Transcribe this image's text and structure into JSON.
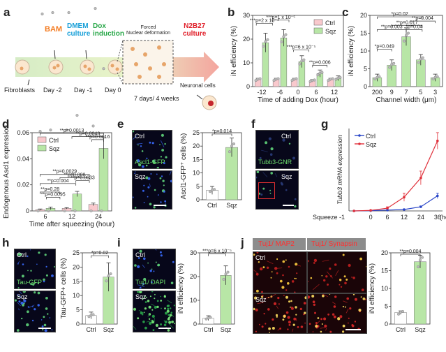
{
  "panel_letters": [
    "a",
    "b",
    "c",
    "d",
    "e",
    "f",
    "g",
    "h",
    "i",
    "j"
  ],
  "timeline": {
    "stages": [
      {
        "label": "BAM",
        "color": "#f47b20"
      },
      {
        "label": "DMEM\nculture",
        "color": "#1aa0d8"
      },
      {
        "label": "Dox\ninduction",
        "color": "#2aa84a"
      },
      {
        "label": "N2B27\nculture",
        "color": "#e0202a"
      }
    ],
    "start_label": "Fibroblasts",
    "days": [
      "Day -2",
      "Day -1",
      "Day 0",
      "7 days/ 4 weeks"
    ],
    "forced_label": "Forced\nNuclear deformation",
    "end_label": "Neuronal cells"
  },
  "colors": {
    "ctrl": "#f9c9cd",
    "sqz": "#b8e6a6",
    "ctrl_line": "#2a46c8",
    "sqz_line": "#e0303a"
  },
  "microscopy": {
    "e": {
      "top": "Ctrl",
      "bottom": "Sqz",
      "stain": "Ascl1-GFP"
    },
    "f": {
      "top": "Ctrl",
      "bottom": "Sqz",
      "stain": "Tubb3-GNR"
    },
    "h": {
      "top": "Ctrl",
      "bottom": "Sqz",
      "stain": "Tau-GFP"
    },
    "i": {
      "top": "Ctrl",
      "bottom": "Sqz",
      "stain": "Tuj1/ DAPI"
    },
    "j": {
      "tab1": "Tuj1/ MAP2",
      "tab2": "Tuj1/ Synapsin",
      "top": "Ctrl",
      "bottom": "Sqz"
    }
  },
  "chart_data": [
    {
      "panel": "b",
      "type": "bar",
      "xlabel": "Time of adding Dox (hour)",
      "ylabel": "iN efficiency (%)",
      "categories": [
        "-12",
        "-6",
        "0",
        "6",
        "12"
      ],
      "series": [
        {
          "name": "Ctrl",
          "values": [
            3,
            3,
            3,
            2.5,
            3
          ],
          "err": [
            0.5,
            0.5,
            0.5,
            0.5,
            0.5
          ]
        },
        {
          "name": "Sqz",
          "values": [
            18.5,
            20.5,
            10.5,
            5.5,
            3.5
          ],
          "err": [
            4,
            3.5,
            2.5,
            1.5,
            1
          ]
        }
      ],
      "ylim": [
        0,
        30
      ],
      "yticks": [
        0,
        10,
        20,
        30
      ],
      "legend": "top-right",
      "annotations": [
        "***p=2 x 10⁻⁴",
        "***p=1 x 10⁻⁵",
        "***p=6 x 10⁻⁵",
        "**p=0.006"
      ]
    },
    {
      "panel": "c",
      "type": "bar",
      "xlabel": "Channel width (μm)",
      "ylabel": "iN efficiency (%)",
      "categories": [
        "200",
        "9",
        "7",
        "5",
        "3"
      ],
      "values": [
        2.5,
        6,
        14,
        7.5,
        2.5
      ],
      "err": [
        1,
        1.5,
        2.5,
        1.5,
        1
      ],
      "ylim": [
        0,
        20
      ],
      "yticks": [
        0,
        5,
        10,
        15,
        20
      ],
      "annotations": [
        "*p=0.02",
        "**p=0.004",
        "**p=0.017",
        "**p=0.003",
        "*p=0.04",
        "*p=0.049"
      ]
    },
    {
      "panel": "d",
      "type": "bar",
      "xlabel": "Time after squeezing (hour)",
      "ylabel": "Endogenous Ascl1 expression",
      "categories": [
        "6",
        "12",
        "24"
      ],
      "series": [
        {
          "name": "Ctrl",
          "values": [
            0.001,
            0.002,
            0.005
          ],
          "err": [
            0.0005,
            0.0005,
            0.001
          ]
        },
        {
          "name": "Sqz",
          "values": [
            0.002,
            0.013,
            0.048
          ],
          "err": [
            0.001,
            0.002,
            0.008
          ]
        }
      ],
      "ylim": [
        0,
        0.06
      ],
      "yticks": [
        0,
        0.02,
        0.04,
        0.06
      ],
      "legend": "top-left",
      "annotations": [
        "**p=0.0013",
        "**p=0.0043",
        "**p=0.0016",
        "**p=0.0029",
        "**p=0.008",
        "**p=0.0033",
        "**p=0.004",
        "**p=0.28",
        "**p=0.0095"
      ]
    },
    {
      "panel": "e",
      "type": "bar",
      "ylabel": "Ascl1-GFP⁺ cells (%)",
      "categories": [
        "Ctrl",
        "Sqz"
      ],
      "values": [
        3.5,
        19.5
      ],
      "err": [
        1.5,
        3.5
      ],
      "ylim": [
        0,
        25
      ],
      "yticks": [
        0,
        5,
        10,
        15,
        20,
        25
      ],
      "annotations": [
        "*p=0.014"
      ]
    },
    {
      "panel": "g",
      "type": "line",
      "xlabel": "(hour)",
      "ylabel": "Tubb3 mRNA expression",
      "x": [
        "Squeeze -1",
        "0",
        "6",
        "12",
        "24",
        "36"
      ],
      "series": [
        {
          "name": "Ctrl",
          "values": [
            0,
            1,
            3,
            5,
            15,
            55
          ],
          "err": [
            0,
            0,
            1,
            2,
            3,
            10
          ]
        },
        {
          "name": "Sqz",
          "values": [
            0,
            2,
            10,
            50,
            120,
            255
          ],
          "err": [
            0,
            1,
            5,
            15,
            25,
            30
          ]
        }
      ],
      "ylim": [
        0,
        300
      ],
      "legend": "top-left"
    },
    {
      "panel": "h",
      "type": "bar",
      "ylabel": "Tau-GFP+ cells (%)",
      "categories": [
        "Ctrl",
        "Sqz"
      ],
      "values": [
        3,
        16.5
      ],
      "err": [
        1.2,
        5
      ],
      "ylim": [
        0,
        25
      ],
      "yticks": [
        0,
        5,
        10,
        15,
        20,
        25
      ],
      "annotations": [
        "*p=0.02"
      ]
    },
    {
      "panel": "i",
      "type": "bar",
      "ylabel": "iN efficiency (%)",
      "categories": [
        "Ctrl",
        "Sqz"
      ],
      "values": [
        2.5,
        20.5
      ],
      "err": [
        1,
        4
      ],
      "ylim": [
        0,
        30
      ],
      "yticks": [
        0,
        10,
        20,
        30
      ],
      "annotations": [
        "***p=6 x 10⁻⁵"
      ]
    },
    {
      "panel": "j",
      "type": "bar",
      "ylabel": "iN efficiency (%)",
      "categories": [
        "Ctrl",
        "Sqz"
      ],
      "values": [
        3.2,
        17.5
      ],
      "err": [
        0.5,
        1.8
      ],
      "ylim": [
        0,
        20
      ],
      "yticks": [
        0,
        5,
        10,
        15,
        20
      ],
      "annotations": [
        "**p=0.004"
      ]
    }
  ]
}
